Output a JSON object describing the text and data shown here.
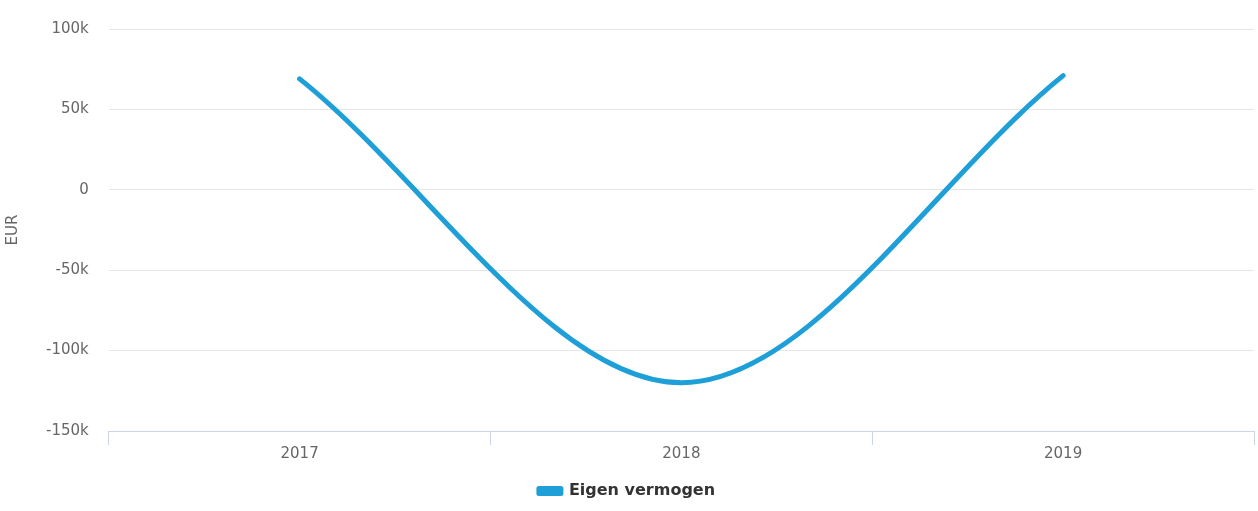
{
  "chart_data": {
    "type": "line",
    "ylabel": "EUR",
    "categories": [
      "2017",
      "2018",
      "2019"
    ],
    "series": [
      {
        "name": "Eigen vermogen",
        "color": "#1f9fd8",
        "values": [
          69000,
          -120000,
          71000
        ]
      }
    ],
    "ylim": [
      -150000,
      100000
    ],
    "yticks": [
      {
        "value": -150000,
        "label": "-150k"
      },
      {
        "value": -100000,
        "label": "-100k"
      },
      {
        "value": -50000,
        "label": "-50k"
      },
      {
        "value": 0,
        "label": "0"
      },
      {
        "value": 50000,
        "label": "50k"
      },
      {
        "value": 100000,
        "label": "100k"
      }
    ],
    "grid": "y",
    "legend": "bottom",
    "marker": "none",
    "line_style": "solid"
  }
}
